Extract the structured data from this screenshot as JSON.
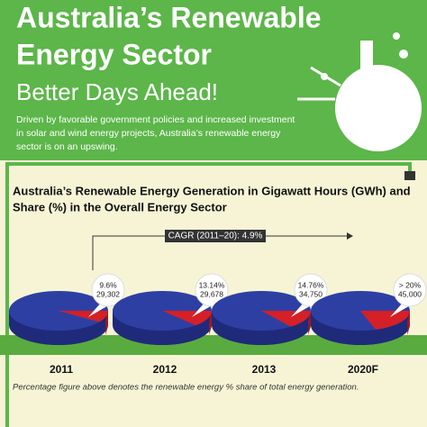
{
  "header": {
    "title_line1": "Australia’s Renewable",
    "title_line2": "Energy Sector",
    "subtitle": "Better Days Ahead!",
    "description": [
      "Driven by favorable government policies and increased investment",
      "in solar and wind energy projects, Australia’s renewable energy",
      "sector is on an upswing."
    ]
  },
  "chart": {
    "title_line1": "Australia’s Renewable Energy Generation in Gigawatt Hours (GWh) and",
    "title_line2": "Share (%) in the Overall Energy Sector",
    "cagr": "CAGR (2011–20): 4.9%",
    "categories": [
      "2011",
      "2012",
      "2013",
      "2020F"
    ],
    "share": [
      9.6,
      13.14,
      14.76,
      20
    ],
    "share_labels": [
      "9.6%",
      "13.14%",
      "14.76%",
      "> 20%"
    ],
    "generation_labels": [
      "29,302",
      "29,678",
      "34,750",
      "45,000"
    ],
    "note": "Percentage figure above denotes the renewable energy % share of total energy generation."
  }
}
